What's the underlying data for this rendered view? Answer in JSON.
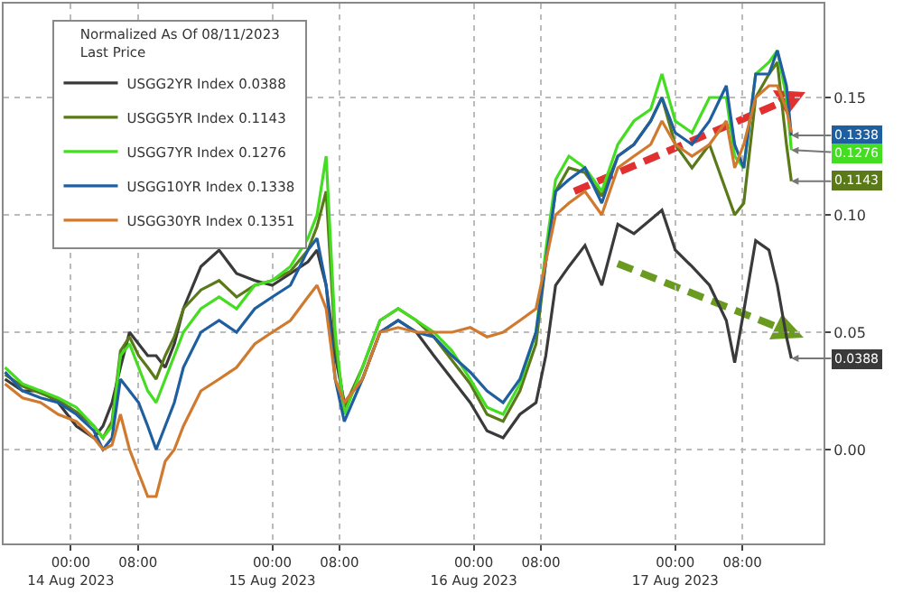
{
  "chart_data": {
    "type": "line",
    "legend_title": "Normalized As Of 08/11/2023\nLast Price",
    "x": [
      "2023-08-13T16:10",
      "2023-08-13T18:15",
      "2023-08-13T20:25",
      "2023-08-13T22:30",
      "2023-08-14T00:40",
      "2023-08-14T02:45",
      "2023-08-14T03:50",
      "2023-08-14T04:55",
      "2023-08-14T05:55",
      "2023-08-14T07:00",
      "2023-08-14T08:05",
      "2023-08-14T09:10",
      "2023-08-14T10:10",
      "2023-08-14T11:15",
      "2023-08-14T12:20",
      "2023-08-14T13:25",
      "2023-08-14T15:30",
      "2023-08-14T17:40",
      "2023-08-14T19:45",
      "2023-08-14T21:55",
      "2023-08-15T00:00",
      "2023-08-15T02:10",
      "2023-08-15T04:15",
      "2023-08-15T05:20",
      "2023-08-15T06:25",
      "2023-08-15T07:30",
      "2023-08-15T08:35",
      "2023-08-15T10:45",
      "2023-08-15T12:50",
      "2023-08-15T15:00",
      "2023-08-15T17:10",
      "2023-08-15T19:15",
      "2023-08-15T21:25",
      "2023-08-15T23:35",
      "2023-08-16T01:35",
      "2023-08-16T03:30",
      "2023-08-16T05:30",
      "2023-08-16T07:25",
      "2023-08-16T08:35",
      "2023-08-16T09:45",
      "2023-08-16T11:20",
      "2023-08-16T13:15",
      "2023-08-16T15:15",
      "2023-08-16T17:10",
      "2023-08-16T19:05",
      "2023-08-16T21:05",
      "2023-08-16T22:25",
      "2023-08-17T00:00",
      "2023-08-17T02:00",
      "2023-08-17T04:05",
      "2023-08-17T06:05",
      "2023-08-17T07:05",
      "2023-08-17T08:10",
      "2023-08-17T09:35",
      "2023-08-17T11:10",
      "2023-08-17T12:10",
      "2023-08-17T13:15",
      "2023-08-17T13:50"
    ],
    "series": [
      {
        "name": "USGG2YR Index 0.0388",
        "color": "#3a3a3a",
        "values": [
          0.03,
          0.025,
          0.025,
          0.02,
          0.01,
          0.005,
          0.01,
          0.02,
          0.035,
          0.05,
          0.045,
          0.04,
          0.04,
          0.035,
          0.045,
          0.06,
          0.078,
          0.085,
          0.075,
          0.072,
          0.07,
          0.075,
          0.08,
          0.085,
          0.07,
          0.04,
          0.02,
          0.03,
          0.05,
          0.055,
          0.05,
          0.04,
          0.03,
          0.02,
          0.008,
          0.005,
          0.015,
          0.02,
          0.04,
          0.07,
          0.078,
          0.087,
          0.07,
          0.096,
          0.092,
          0.098,
          0.102,
          0.085,
          0.078,
          0.07,
          0.055,
          0.037,
          0.059,
          0.089,
          0.085,
          0.07,
          0.048,
          0.0388
        ]
      },
      {
        "name": "USGG5YR Index 0.1143",
        "color": "#5a7a1a",
        "values": [
          0.032,
          0.027,
          0.024,
          0.021,
          0.016,
          0.01,
          0.005,
          0.012,
          0.042,
          0.048,
          0.04,
          0.035,
          0.03,
          0.04,
          0.048,
          0.06,
          0.068,
          0.072,
          0.065,
          0.07,
          0.072,
          0.076,
          0.085,
          0.095,
          0.11,
          0.045,
          0.018,
          0.035,
          0.055,
          0.06,
          0.055,
          0.048,
          0.038,
          0.028,
          0.015,
          0.012,
          0.025,
          0.045,
          0.08,
          0.11,
          0.12,
          0.118,
          0.108,
          0.125,
          0.13,
          0.14,
          0.15,
          0.13,
          0.12,
          0.13,
          0.11,
          0.1,
          0.105,
          0.15,
          0.16,
          0.165,
          0.13,
          0.1143
        ]
      },
      {
        "name": "USGG7YR Index 0.1276",
        "color": "#44dd22",
        "values": [
          0.035,
          0.028,
          0.025,
          0.022,
          0.018,
          0.01,
          0.005,
          0.01,
          0.04,
          0.045,
          0.035,
          0.025,
          0.02,
          0.03,
          0.04,
          0.05,
          0.06,
          0.065,
          0.06,
          0.07,
          0.072,
          0.078,
          0.09,
          0.1,
          0.125,
          0.05,
          0.015,
          0.035,
          0.055,
          0.06,
          0.055,
          0.05,
          0.042,
          0.03,
          0.018,
          0.015,
          0.028,
          0.05,
          0.085,
          0.115,
          0.125,
          0.12,
          0.11,
          0.13,
          0.14,
          0.145,
          0.16,
          0.14,
          0.135,
          0.15,
          0.15,
          0.125,
          0.12,
          0.16,
          0.165,
          0.17,
          0.15,
          0.1276
        ]
      },
      {
        "name": "USGG10YR Index 0.1338",
        "color": "#1f5fa0",
        "values": [
          0.033,
          0.025,
          0.022,
          0.02,
          0.015,
          0.008,
          0.0,
          0.005,
          0.03,
          0.025,
          0.02,
          0.01,
          0.0,
          0.01,
          0.02,
          0.035,
          0.05,
          0.055,
          0.05,
          0.06,
          0.065,
          0.07,
          0.085,
          0.09,
          0.07,
          0.03,
          0.012,
          0.03,
          0.05,
          0.055,
          0.05,
          0.048,
          0.04,
          0.033,
          0.025,
          0.02,
          0.03,
          0.05,
          0.08,
          0.11,
          0.115,
          0.12,
          0.105,
          0.125,
          0.13,
          0.14,
          0.15,
          0.135,
          0.13,
          0.14,
          0.155,
          0.13,
          0.12,
          0.16,
          0.16,
          0.17,
          0.155,
          0.1338
        ]
      },
      {
        "name": "USGG30YR Index 0.1351",
        "color": "#d07a30",
        "values": [
          0.028,
          0.022,
          0.02,
          0.015,
          0.012,
          0.005,
          0.0,
          0.002,
          0.015,
          0.0,
          -0.01,
          -0.02,
          -0.02,
          -0.005,
          0.0,
          0.01,
          0.025,
          0.03,
          0.035,
          0.045,
          0.05,
          0.055,
          0.065,
          0.07,
          0.06,
          0.03,
          0.02,
          0.03,
          0.05,
          0.052,
          0.05,
          0.05,
          0.05,
          0.052,
          0.048,
          0.05,
          0.055,
          0.06,
          0.08,
          0.1,
          0.105,
          0.11,
          0.1,
          0.12,
          0.125,
          0.13,
          0.14,
          0.13,
          0.125,
          0.13,
          0.14,
          0.12,
          0.13,
          0.15,
          0.155,
          0.155,
          0.145,
          0.1351
        ]
      }
    ],
    "xlim": [
      "2023-08-13T16:00",
      "2023-08-17T17:40"
    ],
    "xticks": [
      {
        "value": "2023-08-14T00:00",
        "label": "00:00\n14 Aug 2023"
      },
      {
        "value": "2023-08-14T08:00",
        "label": "08:00"
      },
      {
        "value": "2023-08-15T00:00",
        "label": "00:00\n15 Aug 2023"
      },
      {
        "value": "2023-08-15T08:00",
        "label": "08:00"
      },
      {
        "value": "2023-08-16T00:00",
        "label": "00:00\n16 Aug 2023"
      },
      {
        "value": "2023-08-16T08:00",
        "label": "08:00"
      },
      {
        "value": "2023-08-17T00:00",
        "label": "00:00\n17 Aug 2023"
      },
      {
        "value": "2023-08-17T08:00",
        "label": "08:00"
      }
    ],
    "ylim": [
      -0.04,
      0.19
    ],
    "yticks": [
      {
        "value": 0,
        "label": "0.00"
      },
      {
        "value": 0.05,
        "label": "0.05"
      },
      {
        "value": 0.1,
        "label": "0.10"
      },
      {
        "value": 0.15,
        "label": "0.15"
      }
    ],
    "annotations": [
      {
        "text": "0.1338",
        "x": "2023-08-17T13:50",
        "y": 0.1338
      },
      {
        "text": "0.1276",
        "x": "2023-08-17T13:50",
        "y": 0.1276
      },
      {
        "text": "0.1143",
        "x": "2023-08-17T13:50",
        "y": 0.1143
      },
      {
        "text": "0.0388",
        "x": "2023-08-17T13:50",
        "y": 0.0388
      }
    ],
    "grid": true,
    "legend": "top left",
    "marker": "none",
    "line_style": "solid"
  }
}
